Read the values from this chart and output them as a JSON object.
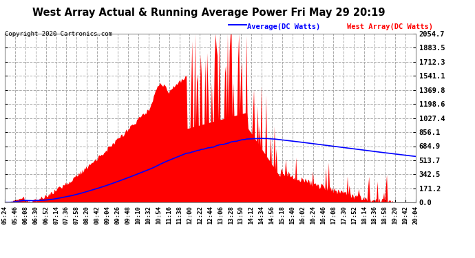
{
  "title": "West Array Actual & Running Average Power Fri May 29 20:19",
  "copyright": "Copyright 2020 Cartronics.com",
  "legend_average": "Average(DC Watts)",
  "legend_west": "West Array(DC Watts)",
  "yticks": [
    0.0,
    171.2,
    342.5,
    513.7,
    684.9,
    856.1,
    1027.4,
    1198.6,
    1369.8,
    1541.1,
    1712.3,
    1883.5,
    2054.7
  ],
  "ymax": 2054.7,
  "ymin": 0.0,
  "background_color": "#ffffff",
  "plot_bg_color": "#ffffff",
  "grid_color": "#aaaaaa",
  "red_color": "#ff0000",
  "blue_color": "#0000ff",
  "title_color": "#000000",
  "tick_color": "#000000",
  "legend_avg_color": "#0000ff",
  "legend_west_color": "#ff0000",
  "copyright_color": "#000000",
  "xtick_labels": [
    "05:24",
    "05:46",
    "06:08",
    "06:30",
    "06:52",
    "07:14",
    "07:36",
    "07:58",
    "08:20",
    "08:42",
    "09:04",
    "09:26",
    "09:48",
    "10:10",
    "10:32",
    "10:54",
    "11:16",
    "11:38",
    "12:00",
    "12:22",
    "12:44",
    "13:06",
    "13:28",
    "13:50",
    "14:12",
    "14:34",
    "14:56",
    "15:18",
    "15:40",
    "16:02",
    "16:24",
    "16:46",
    "17:08",
    "17:30",
    "17:52",
    "18:14",
    "18:36",
    "18:58",
    "19:20",
    "19:42",
    "20:04"
  ],
  "n_points": 440,
  "seed": 42
}
